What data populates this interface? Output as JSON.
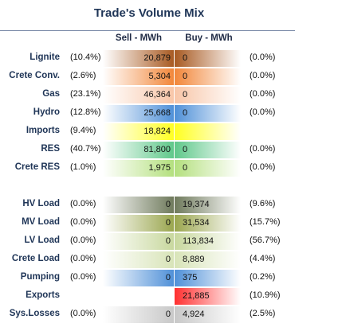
{
  "title": "Trade's Volume Mix",
  "headers": {
    "sell": "Sell - MWh",
    "buy": "Buy - MWh"
  },
  "rows": [
    {
      "label": "Lignite",
      "sell_pct": "(10.4%)",
      "sell": "20,879",
      "buy": "0",
      "buy_pct": "(0.0%)",
      "color": "#a85a22",
      "buy_color": "#a85a22"
    },
    {
      "label": "Crete Conv.",
      "sell_pct": "(2.6%)",
      "sell": "5,304",
      "buy": "0",
      "buy_pct": "(0.0%)",
      "color": "#f2873a",
      "buy_color": "#f2873a"
    },
    {
      "label": "Gas",
      "sell_pct": "(23.1%)",
      "sell": "46,364",
      "buy": "0",
      "buy_pct": "(0.0%)",
      "color": "#f8c6a8",
      "buy_color": "#f8c6a8"
    },
    {
      "label": "Hydro",
      "sell_pct": "(12.8%)",
      "sell": "25,668",
      "buy": "0",
      "buy_pct": "(0.0%)",
      "color": "#4f90d8",
      "buy_color": "#4f90d8"
    },
    {
      "label": "Imports",
      "sell_pct": "(9.4%)",
      "sell": "18,824",
      "buy": "",
      "buy_pct": "",
      "color": "#ffff22",
      "buy_color": "#ffff22"
    },
    {
      "label": "RES",
      "sell_pct": "(40.7%)",
      "sell": "81,800",
      "buy": "0",
      "buy_pct": "(0.0%)",
      "color": "#5fc88a",
      "buy_color": "#5fc88a"
    },
    {
      "label": "Crete RES",
      "sell_pct": "(1.0%)",
      "sell": "1,975",
      "buy": "0",
      "buy_pct": "(0.0%)",
      "color": "#b4e07e",
      "buy_color": "#b4e07e"
    },
    {
      "label": "HV Load",
      "sell_pct": "(0.0%)",
      "sell": "0",
      "buy": "19,374",
      "buy_pct": "(9.6%)",
      "color": "#6f7a5c",
      "buy_color": "#6f7a5c"
    },
    {
      "label": "MV Load",
      "sell_pct": "(0.0%)",
      "sell": "0",
      "buy": "31,534",
      "buy_pct": "(15.7%)",
      "color": "#9aa64e",
      "buy_color": "#9aa64e"
    },
    {
      "label": "LV Load",
      "sell_pct": "(0.0%)",
      "sell": "0",
      "buy": "113,834",
      "buy_pct": "(56.7%)",
      "color": "#c8d89e",
      "buy_color": "#c8d89e"
    },
    {
      "label": "Crete Load",
      "sell_pct": "(0.0%)",
      "sell": "0",
      "buy": "8,889",
      "buy_pct": "(4.4%)",
      "color": "#d8e4b8",
      "buy_color": "#d8e4b8"
    },
    {
      "label": "Pumping",
      "sell_pct": "(0.0%)",
      "sell": "0",
      "buy": "375",
      "buy_pct": "(0.2%)",
      "color": "#4f90d8",
      "buy_color": "#4f90d8"
    },
    {
      "label": "Exports",
      "sell_pct": "",
      "sell": "",
      "buy": "21,885",
      "buy_pct": "(10.9%)",
      "color": "#ff3030",
      "buy_color": "#ff3030"
    },
    {
      "label": "Sys.Losses",
      "sell_pct": "(0.0%)",
      "sell": "0",
      "buy": "4,924",
      "buy_pct": "(2.5%)",
      "color": "#c8c8c8",
      "buy_color": "#c8c8c8"
    }
  ]
}
